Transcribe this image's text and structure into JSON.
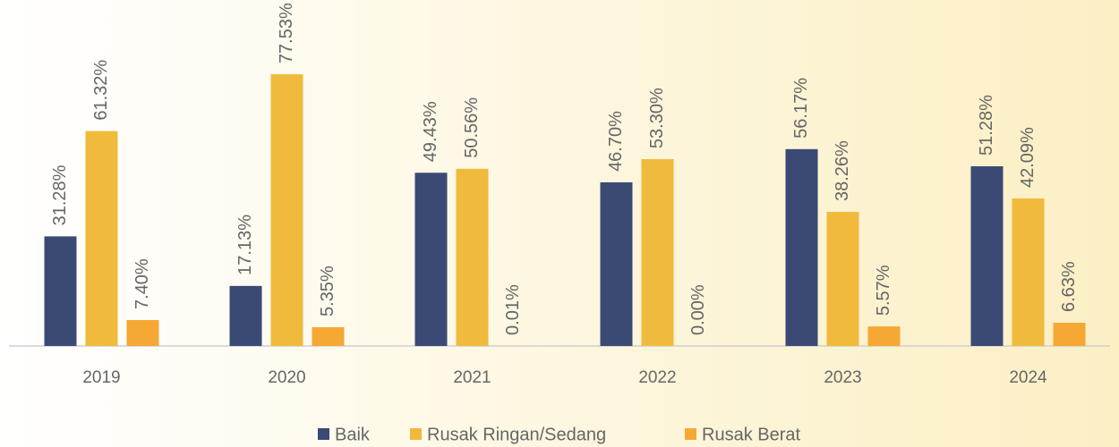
{
  "chart_data": {
    "type": "bar",
    "categories": [
      "2019",
      "2020",
      "2021",
      "2022",
      "2023",
      "2024"
    ],
    "series": [
      {
        "name": "Baik",
        "color": "#3b4a75",
        "values": [
          31.28,
          17.13,
          49.43,
          46.7,
          56.17,
          51.28
        ],
        "value_labels": [
          "31.28%",
          "17.13%",
          "49.43%",
          "46.70%",
          "56.17%",
          "51.28%"
        ]
      },
      {
        "name": "Rusak Ringan/Sedang",
        "color": "#f0ba3c",
        "values": [
          61.32,
          77.53,
          50.56,
          53.3,
          38.26,
          42.09
        ],
        "value_labels": [
          "61.32%",
          "77.53%",
          "50.56%",
          "53.30%",
          "38.26%",
          "42.09%"
        ]
      },
      {
        "name": "Rusak Berat",
        "color": "#f5a833",
        "values": [
          7.4,
          5.35,
          0.01,
          0.0,
          5.57,
          6.63
        ],
        "value_labels": [
          "7.40%",
          "5.35%",
          "0.01%",
          "0.00%",
          "5.57%",
          "6.63%"
        ]
      }
    ],
    "ylim": [
      0,
      100
    ],
    "legend": "bottom"
  }
}
